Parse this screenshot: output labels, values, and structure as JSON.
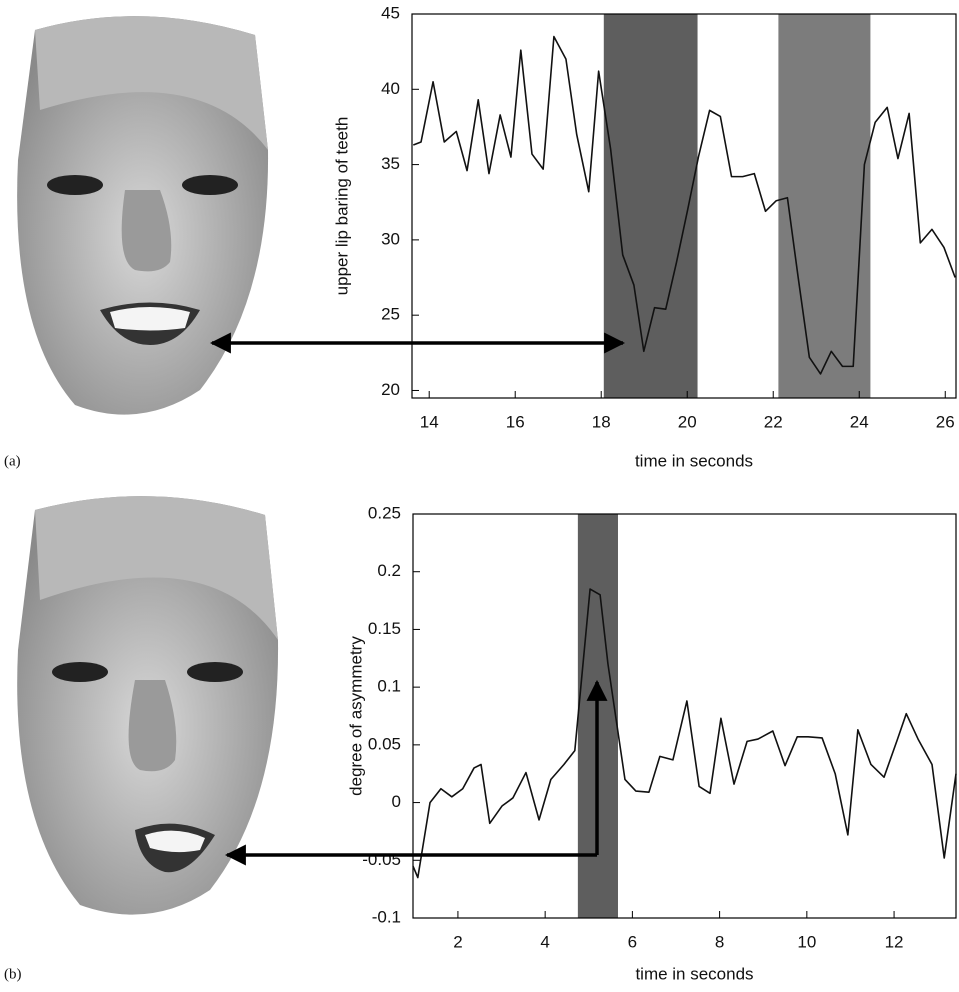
{
  "chart_data": [
    {
      "type": "line",
      "panel_label": "(a)",
      "xlabel": "time in seconds",
      "ylabel": "upper lip baring of teeth",
      "xlim": [
        13.6,
        26.25
      ],
      "ylim": [
        19.5,
        45
      ],
      "xticks": [
        14,
        16,
        18,
        20,
        22,
        24,
        26
      ],
      "yticks": [
        20,
        25,
        30,
        35,
        40,
        45
      ],
      "color": "#111111",
      "shaded_regions": [
        [
          18.06,
          20.24
        ],
        [
          22.12,
          24.26
        ]
      ],
      "shade_colors": [
        "#5e5e5e",
        "#7c7c7c"
      ],
      "x": [
        13.63,
        13.81,
        14.09,
        14.35,
        14.63,
        14.88,
        15.14,
        15.39,
        15.65,
        15.9,
        16.13,
        16.39,
        16.65,
        16.9,
        17.18,
        17.43,
        17.71,
        17.94,
        18.22,
        18.5,
        18.76,
        18.99,
        19.24,
        19.5,
        19.75,
        20.01,
        20.26,
        20.52,
        20.77,
        21.03,
        21.29,
        21.56,
        21.82,
        22.07,
        22.33,
        22.58,
        22.84,
        23.1,
        23.35,
        23.61,
        23.86,
        24.12,
        24.37,
        24.65,
        24.9,
        25.16,
        25.42,
        25.69,
        25.97,
        26.23
      ],
      "values": [
        36.3,
        36.5,
        40.5,
        36.5,
        37.2,
        34.6,
        39.3,
        34.4,
        38.3,
        35.5,
        42.6,
        35.7,
        34.7,
        43.5,
        42,
        37,
        33.2,
        41.2,
        36,
        29,
        27,
        22.6,
        25.5,
        25.4,
        28.5,
        32,
        35.5,
        38.6,
        38.2,
        34.2,
        34.2,
        34.4,
        31.9,
        32.6,
        32.8,
        27.5,
        22.2,
        21.1,
        22.6,
        21.6,
        21.6,
        35,
        37.8,
        38.8,
        35.4,
        38.4,
        29.8,
        30.7,
        29.5,
        27.5
      ]
    },
    {
      "type": "line",
      "panel_label": "(b)",
      "xlabel": "time in seconds",
      "ylabel": "degree of asymmetry",
      "xlim": [
        0.97,
        13.42
      ],
      "ylim": [
        -0.1,
        0.25
      ],
      "xticks": [
        2,
        4,
        6,
        8,
        10,
        12
      ],
      "yticks": [
        -0.1,
        -0.05,
        0,
        0.05,
        0.1,
        0.15,
        0.2,
        0.25
      ],
      "color": "#111111",
      "shaded_regions": [
        [
          4.75,
          5.67
        ]
      ],
      "shade_colors": [
        "#5e5e5e"
      ],
      "x": [
        0.97,
        1.08,
        1.36,
        1.61,
        1.86,
        2.11,
        2.37,
        2.53,
        2.73,
        3.01,
        3.26,
        3.56,
        3.86,
        4.13,
        4.43,
        4.68,
        5.03,
        5.26,
        5.44,
        5.83,
        6.08,
        6.38,
        6.63,
        6.93,
        7.25,
        7.53,
        7.78,
        8.03,
        8.33,
        8.63,
        8.88,
        9.22,
        9.5,
        9.78,
        10.03,
        10.35,
        10.65,
        10.94,
        11.17,
        11.47,
        11.77,
        12.07,
        12.28,
        12.55,
        12.87,
        13.15,
        13.42
      ],
      "values": [
        -0.055,
        -0.065,
        0.0,
        0.012,
        0.005,
        0.012,
        0.03,
        0.033,
        -0.018,
        -0.003,
        0.004,
        0.026,
        -0.015,
        0.02,
        0.033,
        0.045,
        0.185,
        0.18,
        0.12,
        0.02,
        0.01,
        0.009,
        0.04,
        0.037,
        0.088,
        0.014,
        0.008,
        0.073,
        0.016,
        0.053,
        0.055,
        0.062,
        0.032,
        0.057,
        0.057,
        0.056,
        0.025,
        -0.028,
        0.063,
        0.033,
        0.022,
        0.054,
        0.077,
        0.055,
        0.033,
        -0.048,
        0.025
      ]
    }
  ]
}
